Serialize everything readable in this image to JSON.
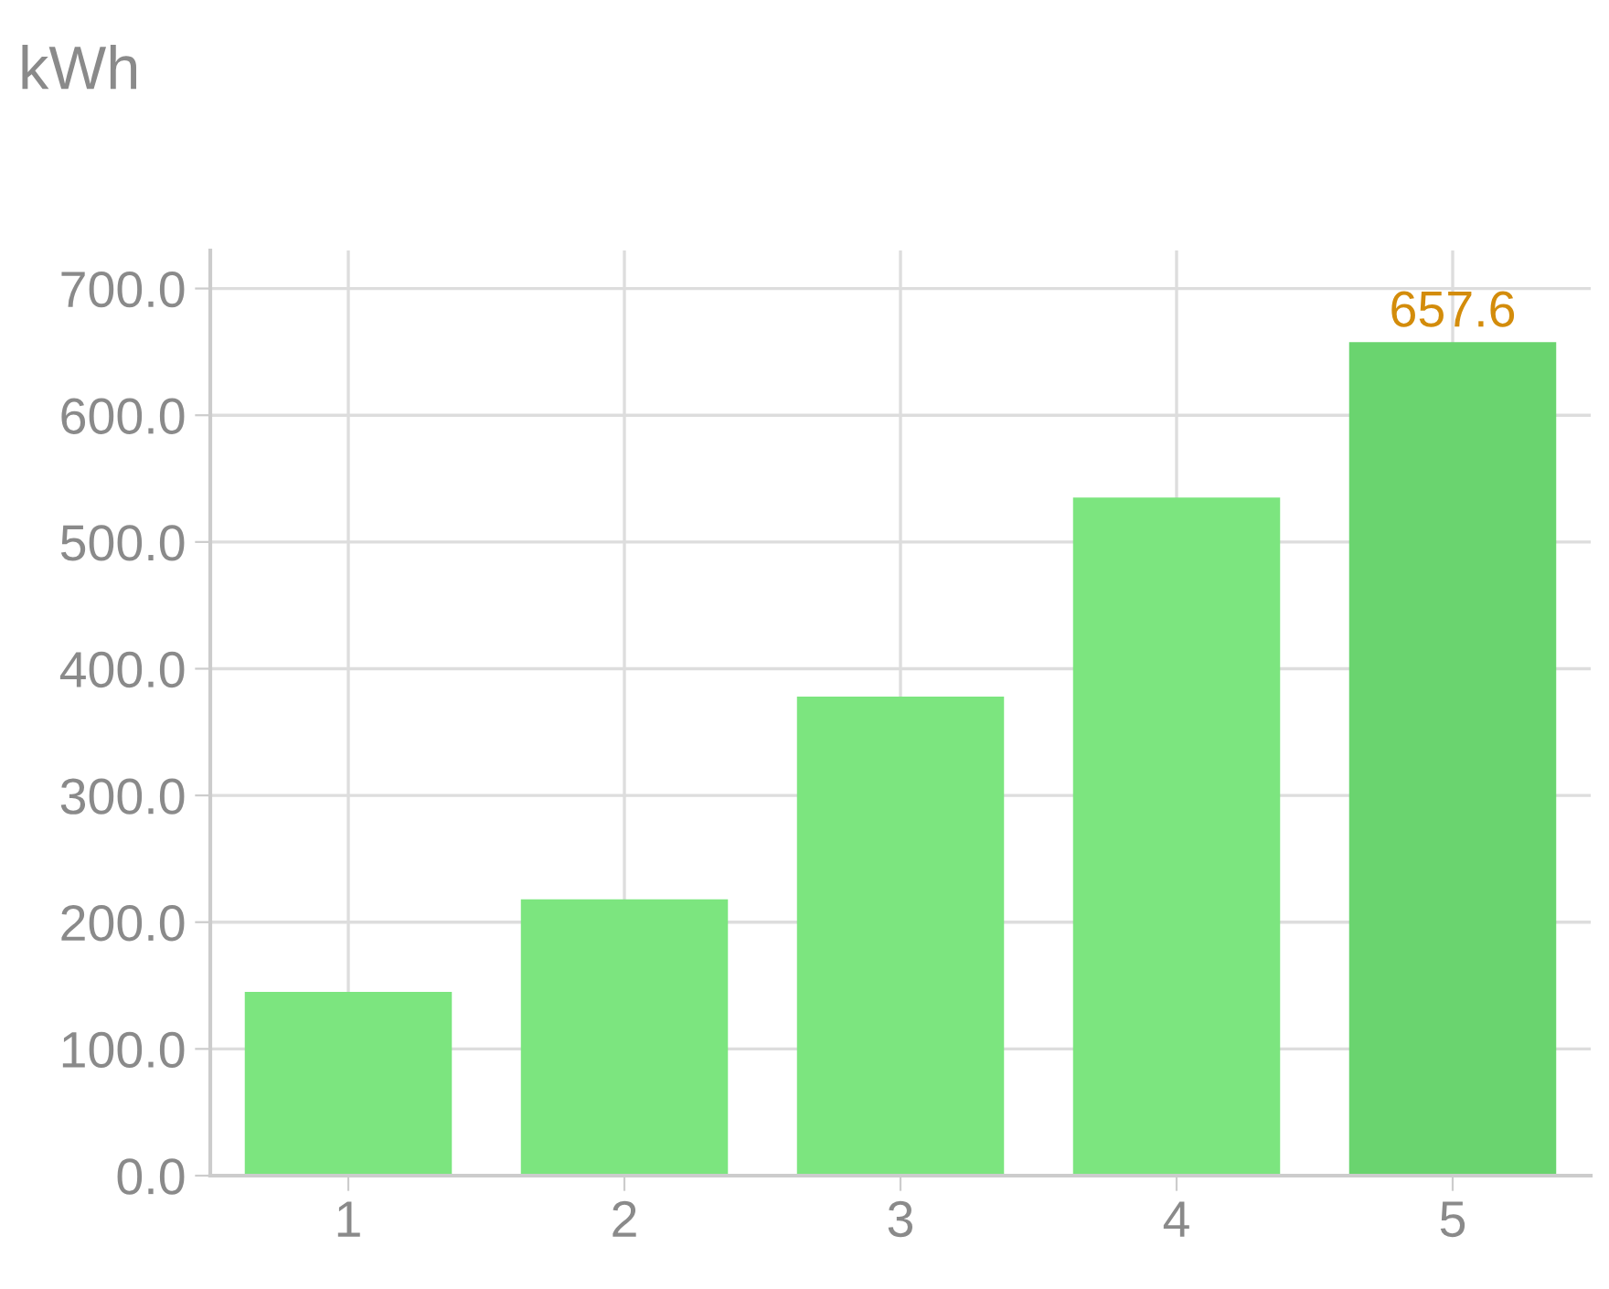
{
  "chart_data": {
    "type": "bar",
    "title": "kWh",
    "categories": [
      "1",
      "2",
      "3",
      "4",
      "5"
    ],
    "values": [
      145,
      218,
      378,
      535,
      657.6
    ],
    "colors": [
      "#7ce57f",
      "#7ce57f",
      "#7ce57f",
      "#7ce57f",
      "#6ad46f"
    ],
    "value_labels": [
      null,
      null,
      null,
      null,
      "657.6"
    ],
    "ylim": [
      0,
      730
    ],
    "yticks": [
      {
        "value": 0,
        "label": "0.0"
      },
      {
        "value": 100,
        "label": "100.0"
      },
      {
        "value": 200,
        "label": "200.0"
      },
      {
        "value": 300,
        "label": "300.0"
      },
      {
        "value": 400,
        "label": "400.0"
      },
      {
        "value": 500,
        "label": "500.0"
      },
      {
        "value": 600,
        "label": "600.0"
      },
      {
        "value": 700,
        "label": "700.0"
      }
    ],
    "grid": true,
    "legend": false
  }
}
